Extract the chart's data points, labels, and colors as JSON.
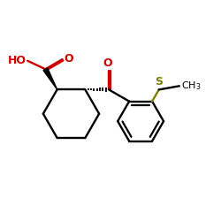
{
  "bg_color": "#ffffff",
  "black": "#000000",
  "red": "#cc0000",
  "sulfur_color": "#808000",
  "line_width": 1.7,
  "figsize": [
    2.5,
    2.5
  ],
  "dpi": 100,
  "xlim": [
    0,
    10
  ],
  "ylim": [
    0,
    10
  ]
}
